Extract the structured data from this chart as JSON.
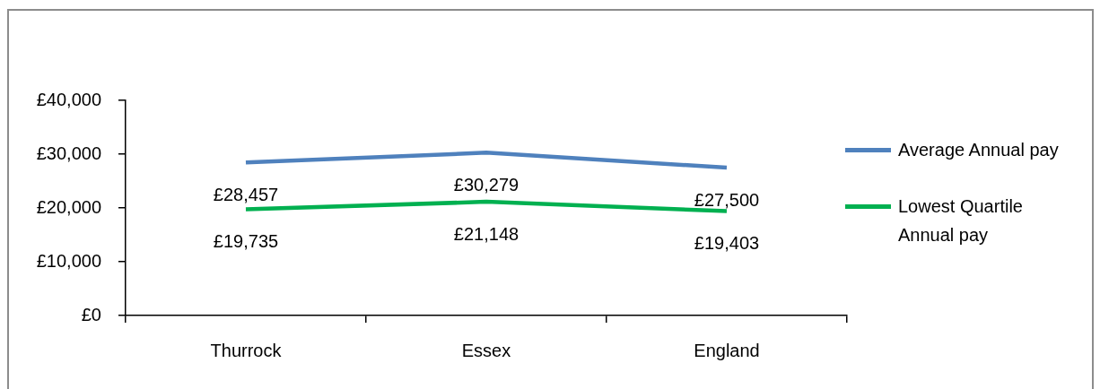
{
  "chart_data": {
    "type": "line",
    "categories": [
      "Thurrock",
      "Essex",
      "England"
    ],
    "series": [
      {
        "name": "Average Annual pay",
        "color": "#4f81bd",
        "values": [
          28457,
          30279,
          27500
        ],
        "value_labels": [
          "£28,457",
          "£30,279",
          "£27,500"
        ]
      },
      {
        "name": "Lowest Quartile Annual pay",
        "color": "#00b050",
        "values": [
          19735,
          21148,
          19403
        ],
        "value_labels": [
          "£19,735",
          "£21,148",
          "£19,403"
        ]
      }
    ],
    "ylim": [
      0,
      40000
    ],
    "yticks": [
      {
        "value": 0,
        "label": "£0"
      },
      {
        "value": 10000,
        "label": "£10,000"
      },
      {
        "value": 20000,
        "label": "£20,000"
      },
      {
        "value": 30000,
        "label": "£30,000"
      },
      {
        "value": 40000,
        "label": "£40,000"
      }
    ],
    "grid": false,
    "legend": "right",
    "marker": "none",
    "line_style": "solid"
  }
}
